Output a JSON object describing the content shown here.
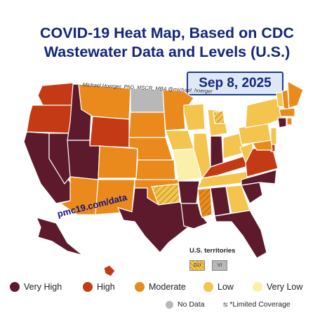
{
  "title_line1": "COVID-19 Heat Map, Based on CDC",
  "title_line2": "Wastewater Data and Levels (U.S.)",
  "date": "Sep 8, 2025",
  "author": "Michael Hoerger, PhD, MSCR, MBA @michael_hoerger",
  "website": "pmc19.com/data",
  "territories": {
    "title": "U.S. territories",
    "items": [
      {
        "label": "GU",
        "level": "low-limited"
      },
      {
        "label": "VI",
        "level": "no-data"
      }
    ]
  },
  "colors": {
    "very_high": "#5c1a2c",
    "high": "#c43a15",
    "moderate": "#ea8a1c",
    "low": "#f3c44e",
    "very_low": "#faf0ac",
    "no_data": "#b8b8b8"
  },
  "legend": [
    {
      "label": "Very High",
      "level": "very_high"
    },
    {
      "label": "High",
      "level": "high"
    },
    {
      "label": "Moderate",
      "level": "moderate"
    },
    {
      "label": "Low",
      "level": "low"
    },
    {
      "label": "Very Low",
      "level": "very_low"
    }
  ],
  "legend_extra": {
    "no_data": "No Data",
    "limited": "*Limited Coverage"
  },
  "states": {
    "WA": "high",
    "OR": "high",
    "CA": "very_high",
    "NV": "very_high",
    "ID": "very_high",
    "MT": "moderate",
    "WY": "high",
    "UT": "very_high",
    "AZ": "moderate",
    "CO": "moderate",
    "NM": "moderate",
    "ND": "no_data",
    "SD": "moderate",
    "NE": "moderate",
    "KS": "moderate",
    "OK": "moderate",
    "TX": "very_high",
    "MN": "moderate",
    "IA": "low",
    "MO": "very_low",
    "AR": "very_high",
    "LA": "very_high",
    "WI": "low",
    "IL": "low",
    "MI": "low",
    "IN": "very_high",
    "KY": "high",
    "TN": "low",
    "MS": "moderate",
    "AL": "very_high",
    "GA": "low",
    "FL": "very_high",
    "OH": "low",
    "WV": "low",
    "VA": "high",
    "NC": "very_high",
    "SC": "very_high",
    "PA": "low",
    "NY": "low",
    "VT": "low",
    "NH": "moderate",
    "ME": "moderate",
    "MA": "moderate",
    "CT": "very_high",
    "RI": "moderate",
    "NJ": "low",
    "DE": "high",
    "MD": "moderate",
    "AK": "very_high",
    "HI": "high"
  },
  "limited_coverage": [
    "MS",
    "OK-south",
    "MI-upper"
  ]
}
